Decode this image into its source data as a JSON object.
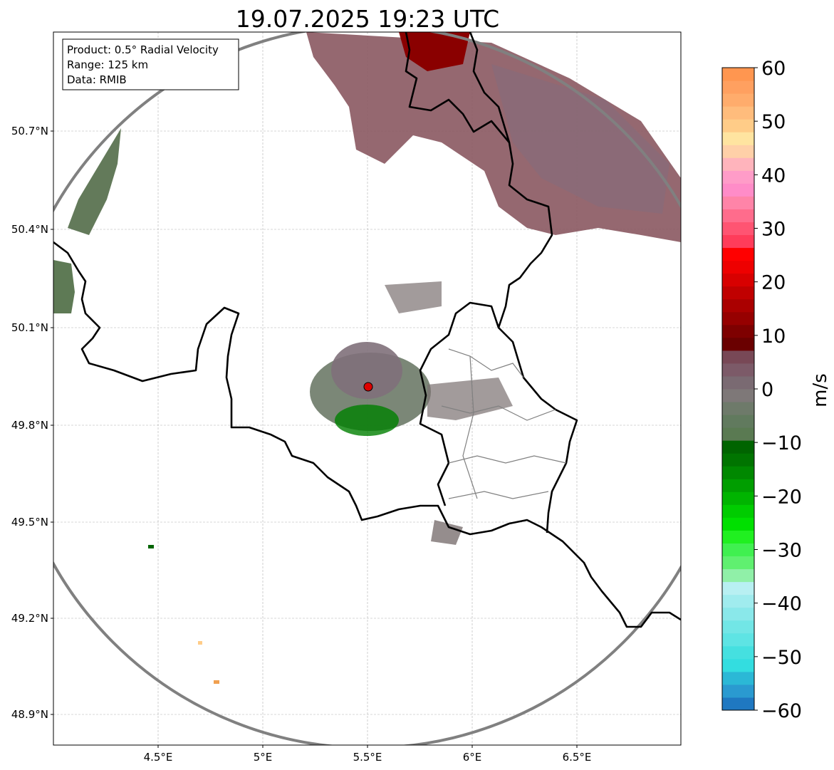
{
  "title": "19.07.2025 19:23 UTC",
  "info_box": {
    "product": "Product: 0.5° Radial Velocity",
    "range": "Range: 125 km",
    "data": "Data: RMIB"
  },
  "map": {
    "lon_ticks": [
      "4.5°E",
      "5°E",
      "5.5°E",
      "6°E",
      "6.5°E"
    ],
    "lat_ticks": [
      "50.7°N",
      "50.4°N",
      "50.1°N",
      "49.8°N",
      "49.5°N",
      "49.2°N",
      "48.9°N"
    ],
    "radar_site": {
      "lon": 5.51,
      "lat": 49.91
    },
    "range_km": 125
  },
  "colorbar": {
    "label": "m/s",
    "min": -60,
    "max": 60,
    "ticks": [
      "60",
      "50",
      "40",
      "30",
      "20",
      "10",
      "0",
      "−10",
      "−20",
      "−30",
      "−40",
      "−50",
      "−60"
    ],
    "colors": [
      "#1f78c1",
      "#2a9ad0",
      "#2bb8d6",
      "#33dde0",
      "#45e0e0",
      "#5ee4e4",
      "#72e6e6",
      "#8ae8ea",
      "#a0ecee",
      "#b8f0f2",
      "#90f0a8",
      "#60f070",
      "#40f050",
      "#20f020",
      "#00e000",
      "#00cc00",
      "#00b400",
      "#009e00",
      "#008800",
      "#007400",
      "#006400",
      "#5a7a52",
      "#617a5e",
      "#6e7a6a",
      "#7e7878",
      "#7a6a72",
      "#7c5a68",
      "#784856",
      "#6a0000",
      "#7e0000",
      "#960000",
      "#aa0000",
      "#c00000",
      "#d80000",
      "#ee0000",
      "#ff0000",
      "#ff3c5a",
      "#ff5472",
      "#ff6c8c",
      "#ff84a8",
      "#ff8cc8",
      "#ff9cc8",
      "#ffb4bc",
      "#ffd0a8",
      "#ffe4a0",
      "#ffcc88",
      "#ffbc7c",
      "#ffac6c",
      "#ffa060",
      "#ff9650"
    ]
  }
}
